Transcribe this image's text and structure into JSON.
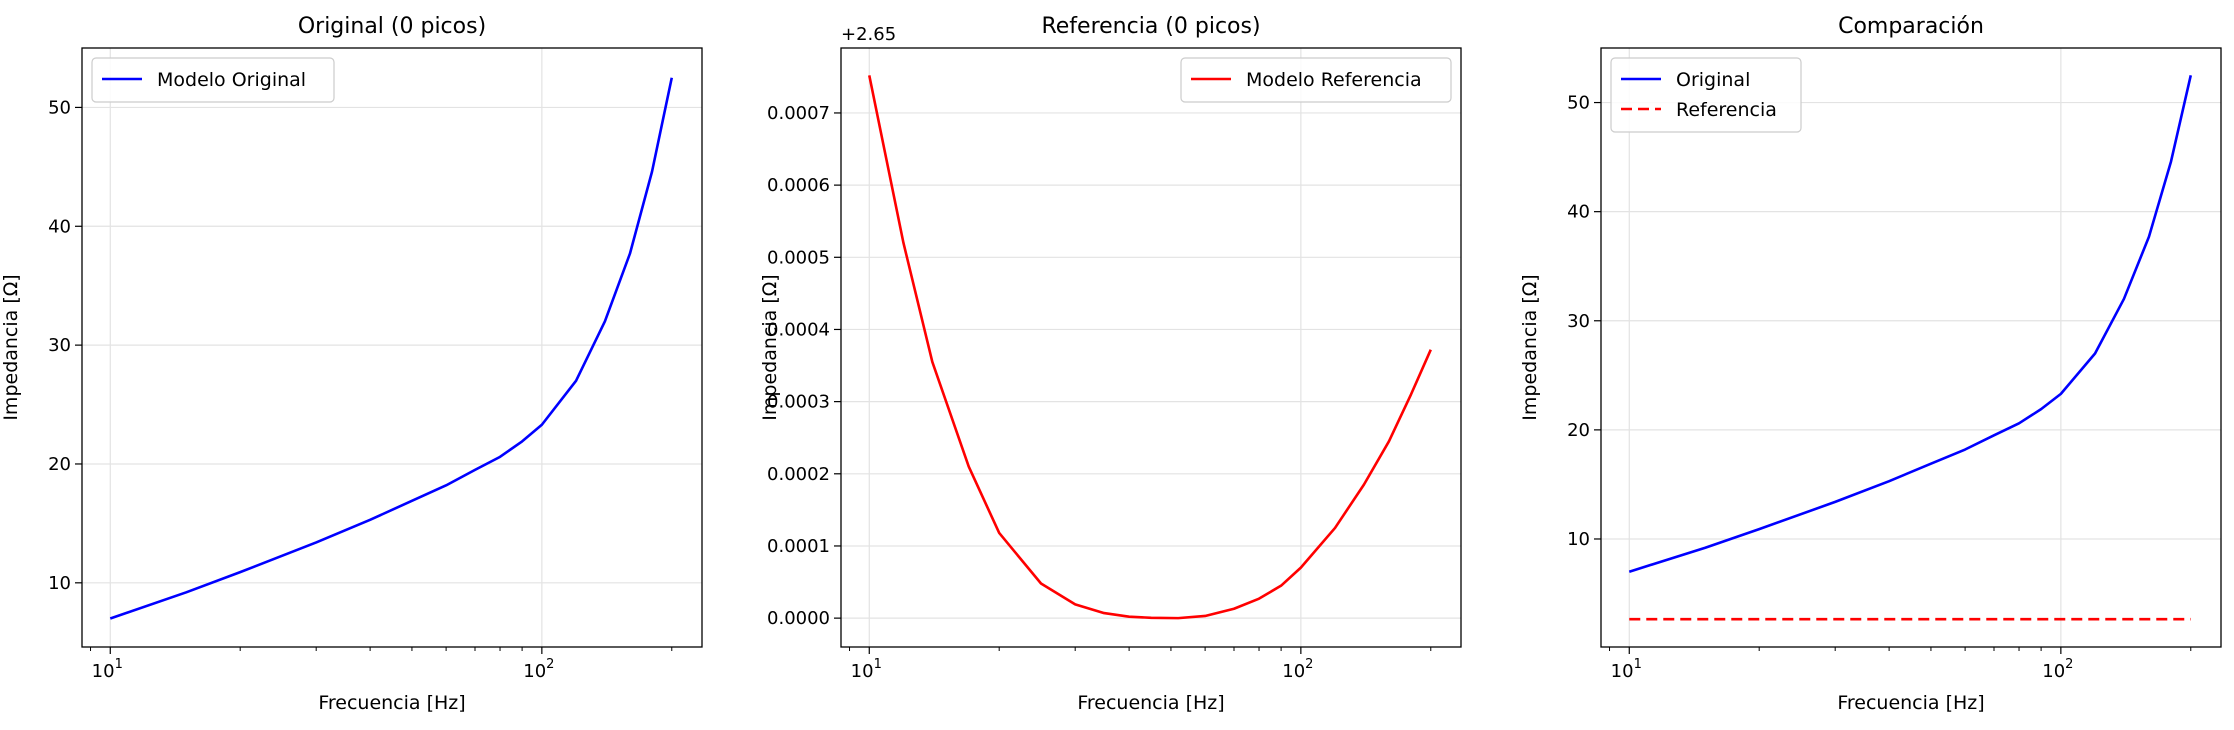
{
  "chart_data": [
    {
      "type": "line",
      "title": "Original (0 picos)",
      "xlabel": "Frecuencia [Hz]",
      "ylabel": "Impedancia [Ω]",
      "xscale": "log",
      "xlim": [
        8.6,
        235
      ],
      "ylim": [
        4.6,
        55.0
      ],
      "yticks": [
        10,
        20,
        30,
        40,
        50
      ],
      "yticklabels": [
        "10",
        "20",
        "30",
        "40",
        "50"
      ],
      "offset_label": "",
      "grid": true,
      "legend": "upper left",
      "series": [
        {
          "name": "Modelo Original",
          "color": "#0000ff",
          "style": "solid",
          "x": [
            10,
            15,
            20,
            30,
            40,
            50,
            60,
            70,
            80,
            90,
            100,
            120,
            140,
            160,
            180,
            200
          ],
          "y": [
            7.0,
            9.2,
            10.9,
            13.4,
            15.3,
            16.9,
            18.2,
            19.5,
            20.6,
            21.9,
            23.3,
            27.0,
            32.0,
            37.7,
            44.6,
            52.5
          ]
        }
      ]
    },
    {
      "type": "line",
      "title": "Referencia (0 picos)",
      "xlabel": "Frecuencia [Hz]",
      "ylabel": "Impedancia [Ω]",
      "xscale": "log",
      "xlim": [
        8.6,
        235
      ],
      "ylim": [
        -4e-05,
        0.00079
      ],
      "yticks": [
        0.0,
        0.0001,
        0.0002,
        0.0003,
        0.0004,
        0.0005,
        0.0006,
        0.0007
      ],
      "yticklabels": [
        "0.0000",
        "0.0001",
        "0.0002",
        "0.0003",
        "0.0004",
        "0.0005",
        "0.0006",
        "0.0007"
      ],
      "offset_label": "+2.65",
      "grid": true,
      "legend": "upper right",
      "series": [
        {
          "name": "Modelo Referencia",
          "color": "#ff0000",
          "style": "solid",
          "x": [
            10,
            12,
            14,
            17,
            20,
            25,
            30,
            35,
            40,
            45,
            52,
            60,
            70,
            80,
            90,
            100,
            120,
            140,
            160,
            180,
            200
          ],
          "y": [
            0.000752,
            0.00052,
            0.000355,
            0.00021,
            0.000118,
            4.8e-05,
            1.9e-05,
            7e-06,
            2e-06,
            5e-07,
            0.0,
            3e-06,
            1.3e-05,
            2.7e-05,
            4.5e-05,
            7e-05,
            0.000125,
            0.000185,
            0.000245,
            0.00031,
            0.000372
          ]
        }
      ]
    },
    {
      "type": "line",
      "title": "Comparación",
      "xlabel": "Frecuencia [Hz]",
      "ylabel": "Impedancia [Ω]",
      "xscale": "log",
      "xlim": [
        8.6,
        235
      ],
      "ylim": [
        0.1,
        55.0
      ],
      "yticks": [
        10,
        20,
        30,
        40,
        50
      ],
      "yticklabels": [
        "10",
        "20",
        "30",
        "40",
        "50"
      ],
      "offset_label": "",
      "grid": true,
      "legend": "upper left",
      "series": [
        {
          "name": "Original",
          "color": "#0000ff",
          "style": "solid",
          "x": [
            10,
            15,
            20,
            30,
            40,
            50,
            60,
            70,
            80,
            90,
            100,
            120,
            140,
            160,
            180,
            200
          ],
          "y": [
            7.0,
            9.2,
            10.9,
            13.4,
            15.3,
            16.9,
            18.2,
            19.5,
            20.6,
            21.9,
            23.3,
            27.0,
            32.0,
            37.7,
            44.6,
            52.5
          ]
        },
        {
          "name": "Referencia",
          "color": "#ff0000",
          "style": "dashed",
          "x": [
            10,
            200
          ],
          "y": [
            2.65,
            2.65
          ]
        }
      ]
    }
  ],
  "xtick_labels": [
    "10",
    "1",
    "10",
    "2"
  ]
}
